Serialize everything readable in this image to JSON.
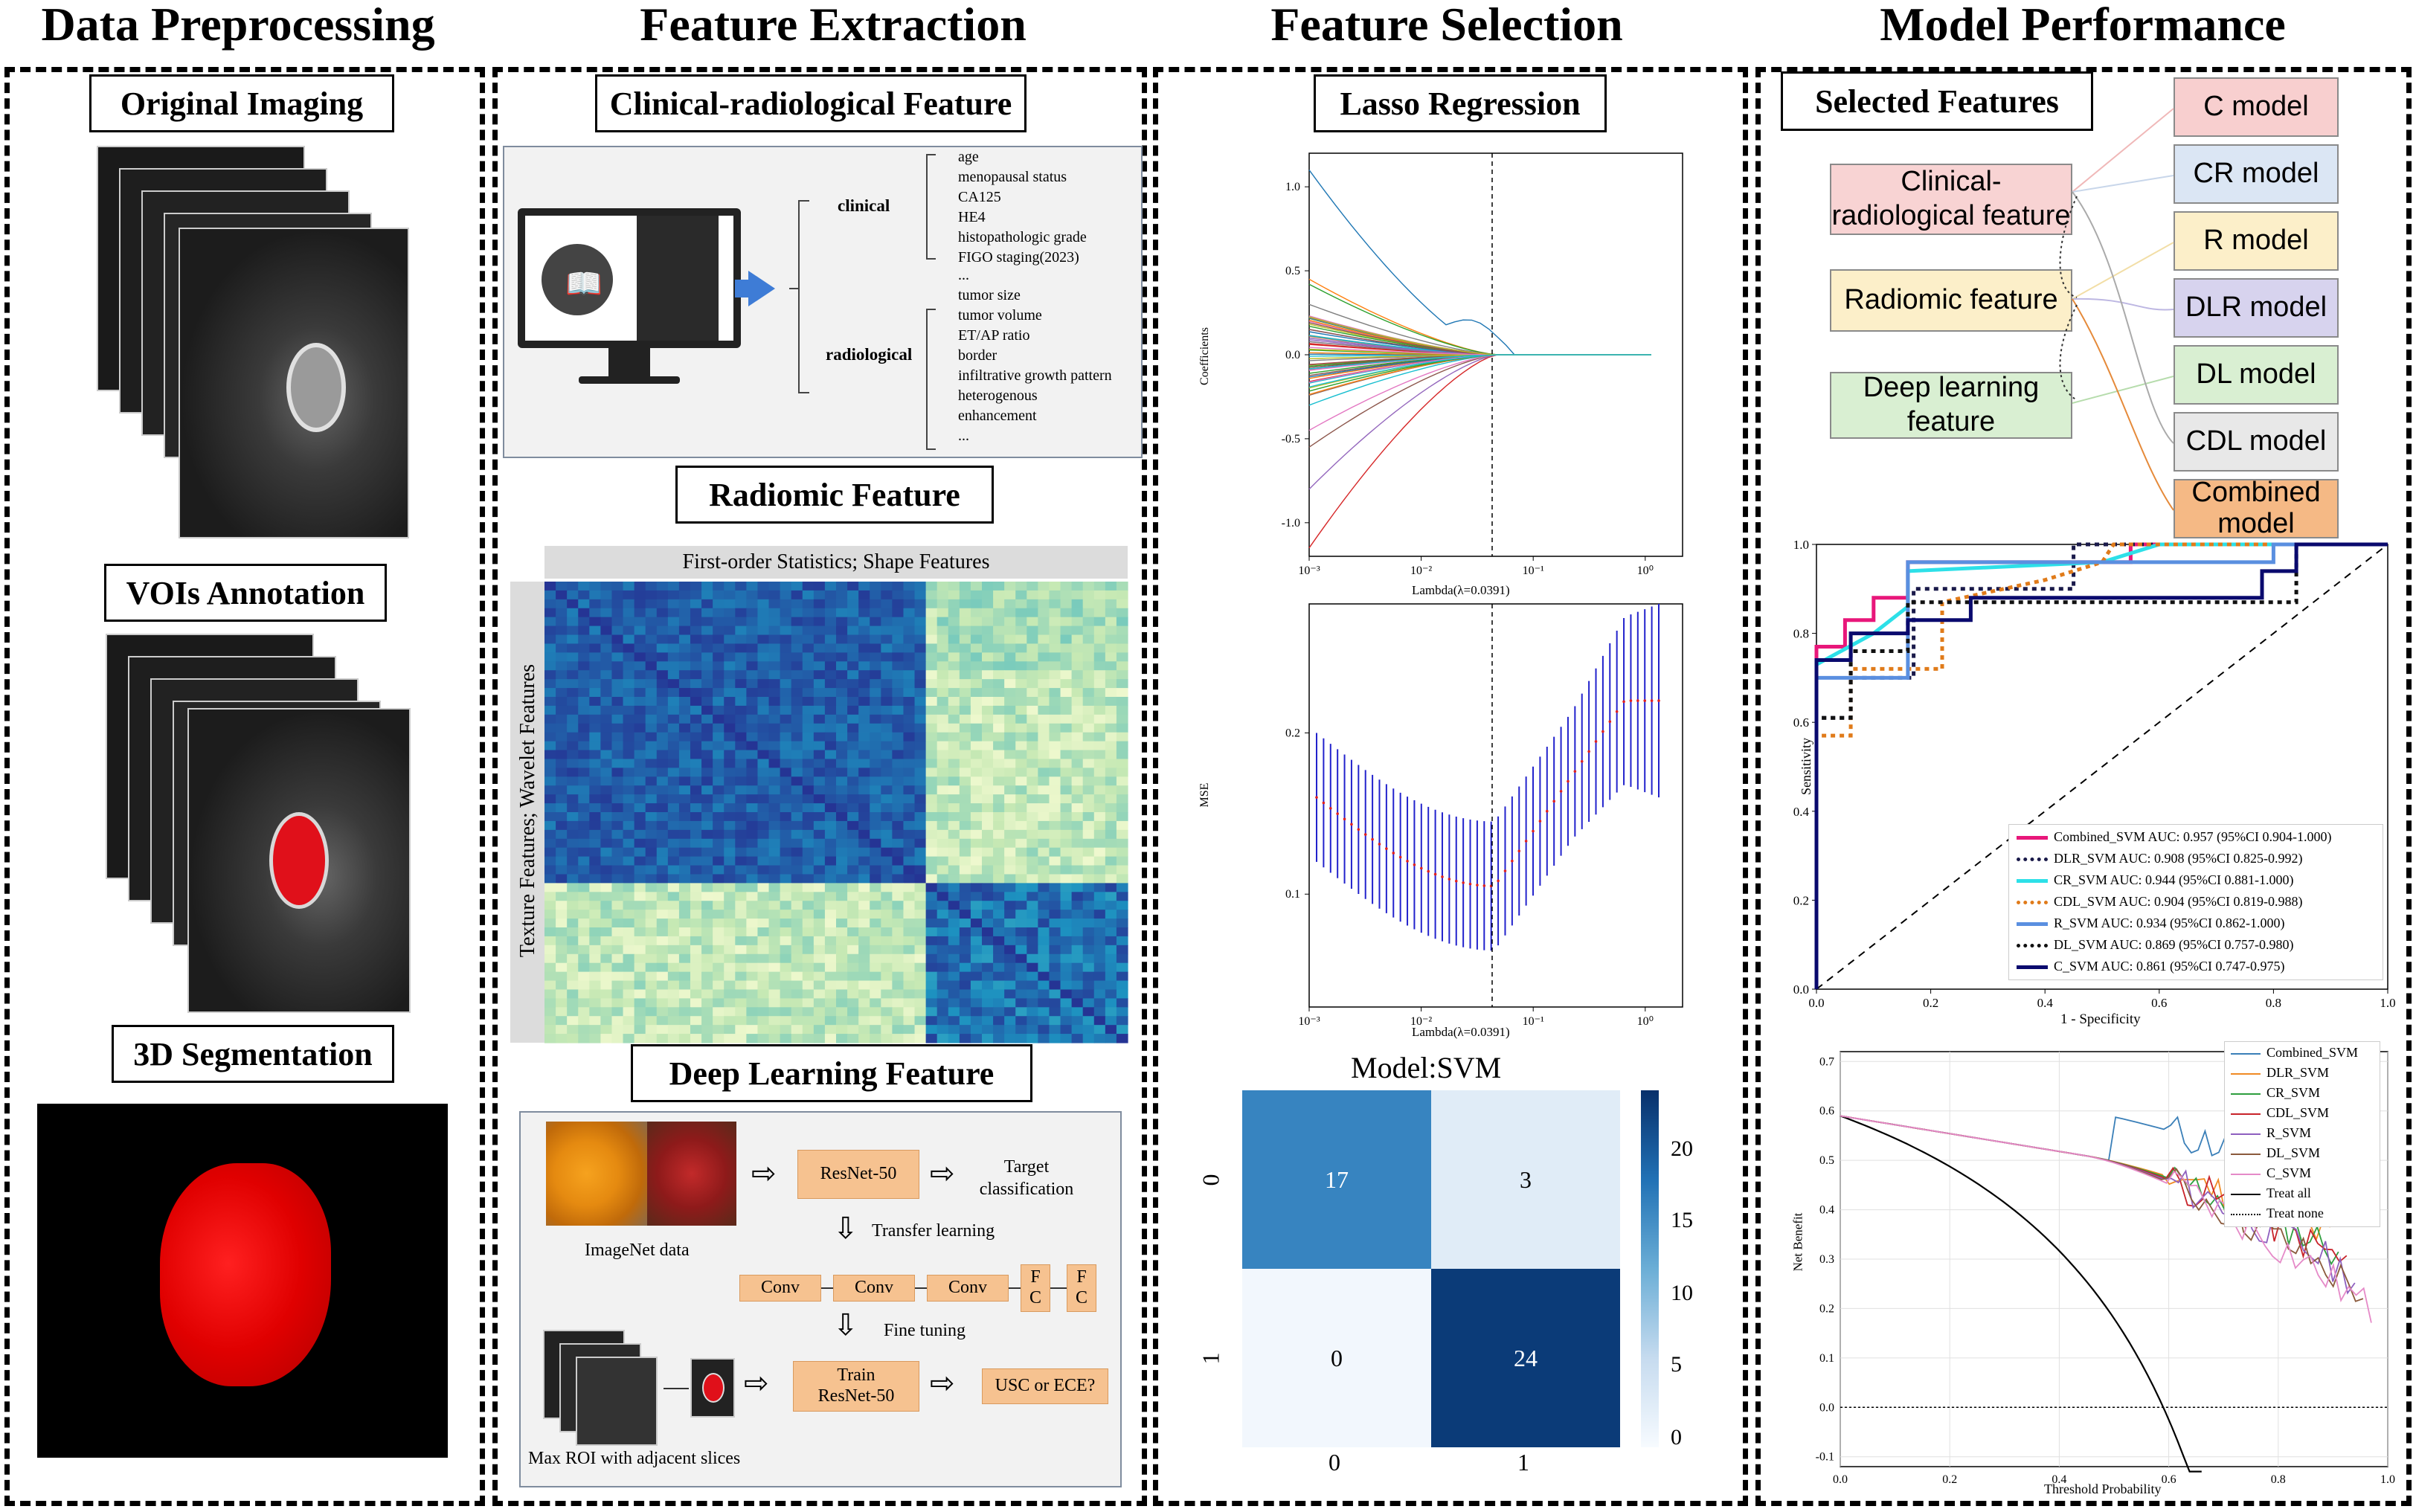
{
  "headers": {
    "preprocessing": "Data Preprocessing",
    "extraction": "Feature Extraction",
    "selection": "Feature Selection",
    "performance": "Model Performance"
  },
  "preprocessing": {
    "original": "Original Imaging",
    "voi": "VOIs Annotation",
    "seg": "3D Segmentation"
  },
  "extraction": {
    "clinical_title": "Clinical-radiological Feature",
    "clinical_label": "clinical",
    "radiological_label": "radiological",
    "clinical_items": [
      "age",
      "menopausal status",
      "CA125",
      "HE4",
      "histopathologic grade",
      "FIGO staging(2023)",
      "..."
    ],
    "radiological_items": [
      "tumor size",
      "tumor volume",
      "ET/AP ratio",
      "border",
      "infiltrative growth pattern",
      "heterogenous",
      "enhancement",
      "..."
    ],
    "radiomic_title": "Radiomic Feature",
    "heatmap_top": "First-order Statistics; Shape Features",
    "heatmap_side": "Texture Features; Wavelet Features",
    "dl_title": "Deep Learning Feature",
    "imagenet": "ImageNet data",
    "resnet": "ResNet-50",
    "target": "Target classification",
    "transfer": "Transfer learning",
    "conv": "Conv",
    "fc": "F C",
    "finetune": "Fine tuning",
    "train": "Train ResNet-50",
    "usc": "USC or ECE?",
    "maxroi": "Max ROI with adjacent slices"
  },
  "selection": {
    "title": "Lasso Regression",
    "coef_ylabel": "Coefficients",
    "mse_ylabel": "MSE",
    "xlabel": "Lambda(λ=0.0391)",
    "coef_yticks": [
      "1.0",
      "0.5",
      "0.0",
      "-0.5",
      "-1.0"
    ],
    "mse_yticks": [
      "0.2",
      "0.1"
    ],
    "xticks": [
      "10⁻³",
      "10⁻²",
      "10⁻¹",
      "10⁰"
    ],
    "cm_title": "Model:SVM",
    "cm_values": [
      [
        "17",
        "3"
      ],
      [
        "0",
        "24"
      ]
    ],
    "cm_labels": [
      "0",
      "1"
    ],
    "cm_scale": [
      "20",
      "15",
      "10",
      "5",
      "0"
    ]
  },
  "performance": {
    "selected": "Selected Features",
    "features": [
      "Clinical-radiological feature",
      "Radiomic feature",
      "Deep learning feature"
    ],
    "models": [
      "C model",
      "CR model",
      "R model",
      "DLR model",
      "DL model",
      "CDL model",
      "Combined model"
    ],
    "model_colors": [
      "#f8cfcf",
      "#dbe6f4",
      "#fcefc9",
      "#d7d3ee",
      "#d9efd2",
      "#e8e8e8",
      "#f5b985"
    ],
    "roc_xlabel": "1 - Specificity",
    "roc_ylabel": "Sensitivity",
    "roc_ticks": [
      "0.0",
      "0.2",
      "0.4",
      "0.6",
      "0.8",
      "1.0"
    ],
    "roc_legend": [
      {
        "label": "Combined_SVM AUC: 0.957 (95%CI 0.904-1.000)",
        "color": "#e8177a",
        "style": "solid"
      },
      {
        "label": "DLR_SVM AUC: 0.908 (95%CI 0.825-0.992)",
        "color": "#1a1a4a",
        "style": "dotted"
      },
      {
        "label": "CR_SVM AUC: 0.944 (95%CI 0.881-1.000)",
        "color": "#2de0e8",
        "style": "solid"
      },
      {
        "label": "CDL_SVM AUC: 0.904 (95%CI 0.819-0.988)",
        "color": "#e07b1a",
        "style": "dotted"
      },
      {
        "label": "R_SVM AUC: 0.934 (95%CI 0.862-1.000)",
        "color": "#5a8fe0",
        "style": "solid"
      },
      {
        "label": "DL_SVM AUC: 0.869 (95%CI 0.757-0.980)",
        "color": "#111",
        "style": "dotted"
      },
      {
        "label": "C_SVM AUC: 0.861 (95%CI 0.747-0.975)",
        "color": "#0a0a6e",
        "style": "solid"
      }
    ],
    "dca_xlabel": "Threshold Probability",
    "dca_ylabel": "Net Benefit",
    "dca_yticks": [
      "0.7",
      "0.6",
      "0.5",
      "0.4",
      "0.3",
      "0.2",
      "0.1",
      "0.0",
      "-0.1"
    ],
    "dca_xticks": [
      "0.0",
      "0.2",
      "0.4",
      "0.6",
      "0.8",
      "1.0"
    ],
    "dca_legend": [
      {
        "label": "Combined_SVM",
        "color": "#3a7fb8"
      },
      {
        "label": "DLR_SVM",
        "color": "#f08a24"
      },
      {
        "label": "CR_SVM",
        "color": "#2e9e3e"
      },
      {
        "label": "CDL_SVM",
        "color": "#c8232a"
      },
      {
        "label": "R_SVM",
        "color": "#8e5fbf"
      },
      {
        "label": "DL_SVM",
        "color": "#8b5a3c"
      },
      {
        "label": "C_SVM",
        "color": "#e58ac8"
      },
      {
        "label": "Treat all",
        "color": "#000"
      },
      {
        "label": "Treat none",
        "color": "#000"
      }
    ]
  }
}
